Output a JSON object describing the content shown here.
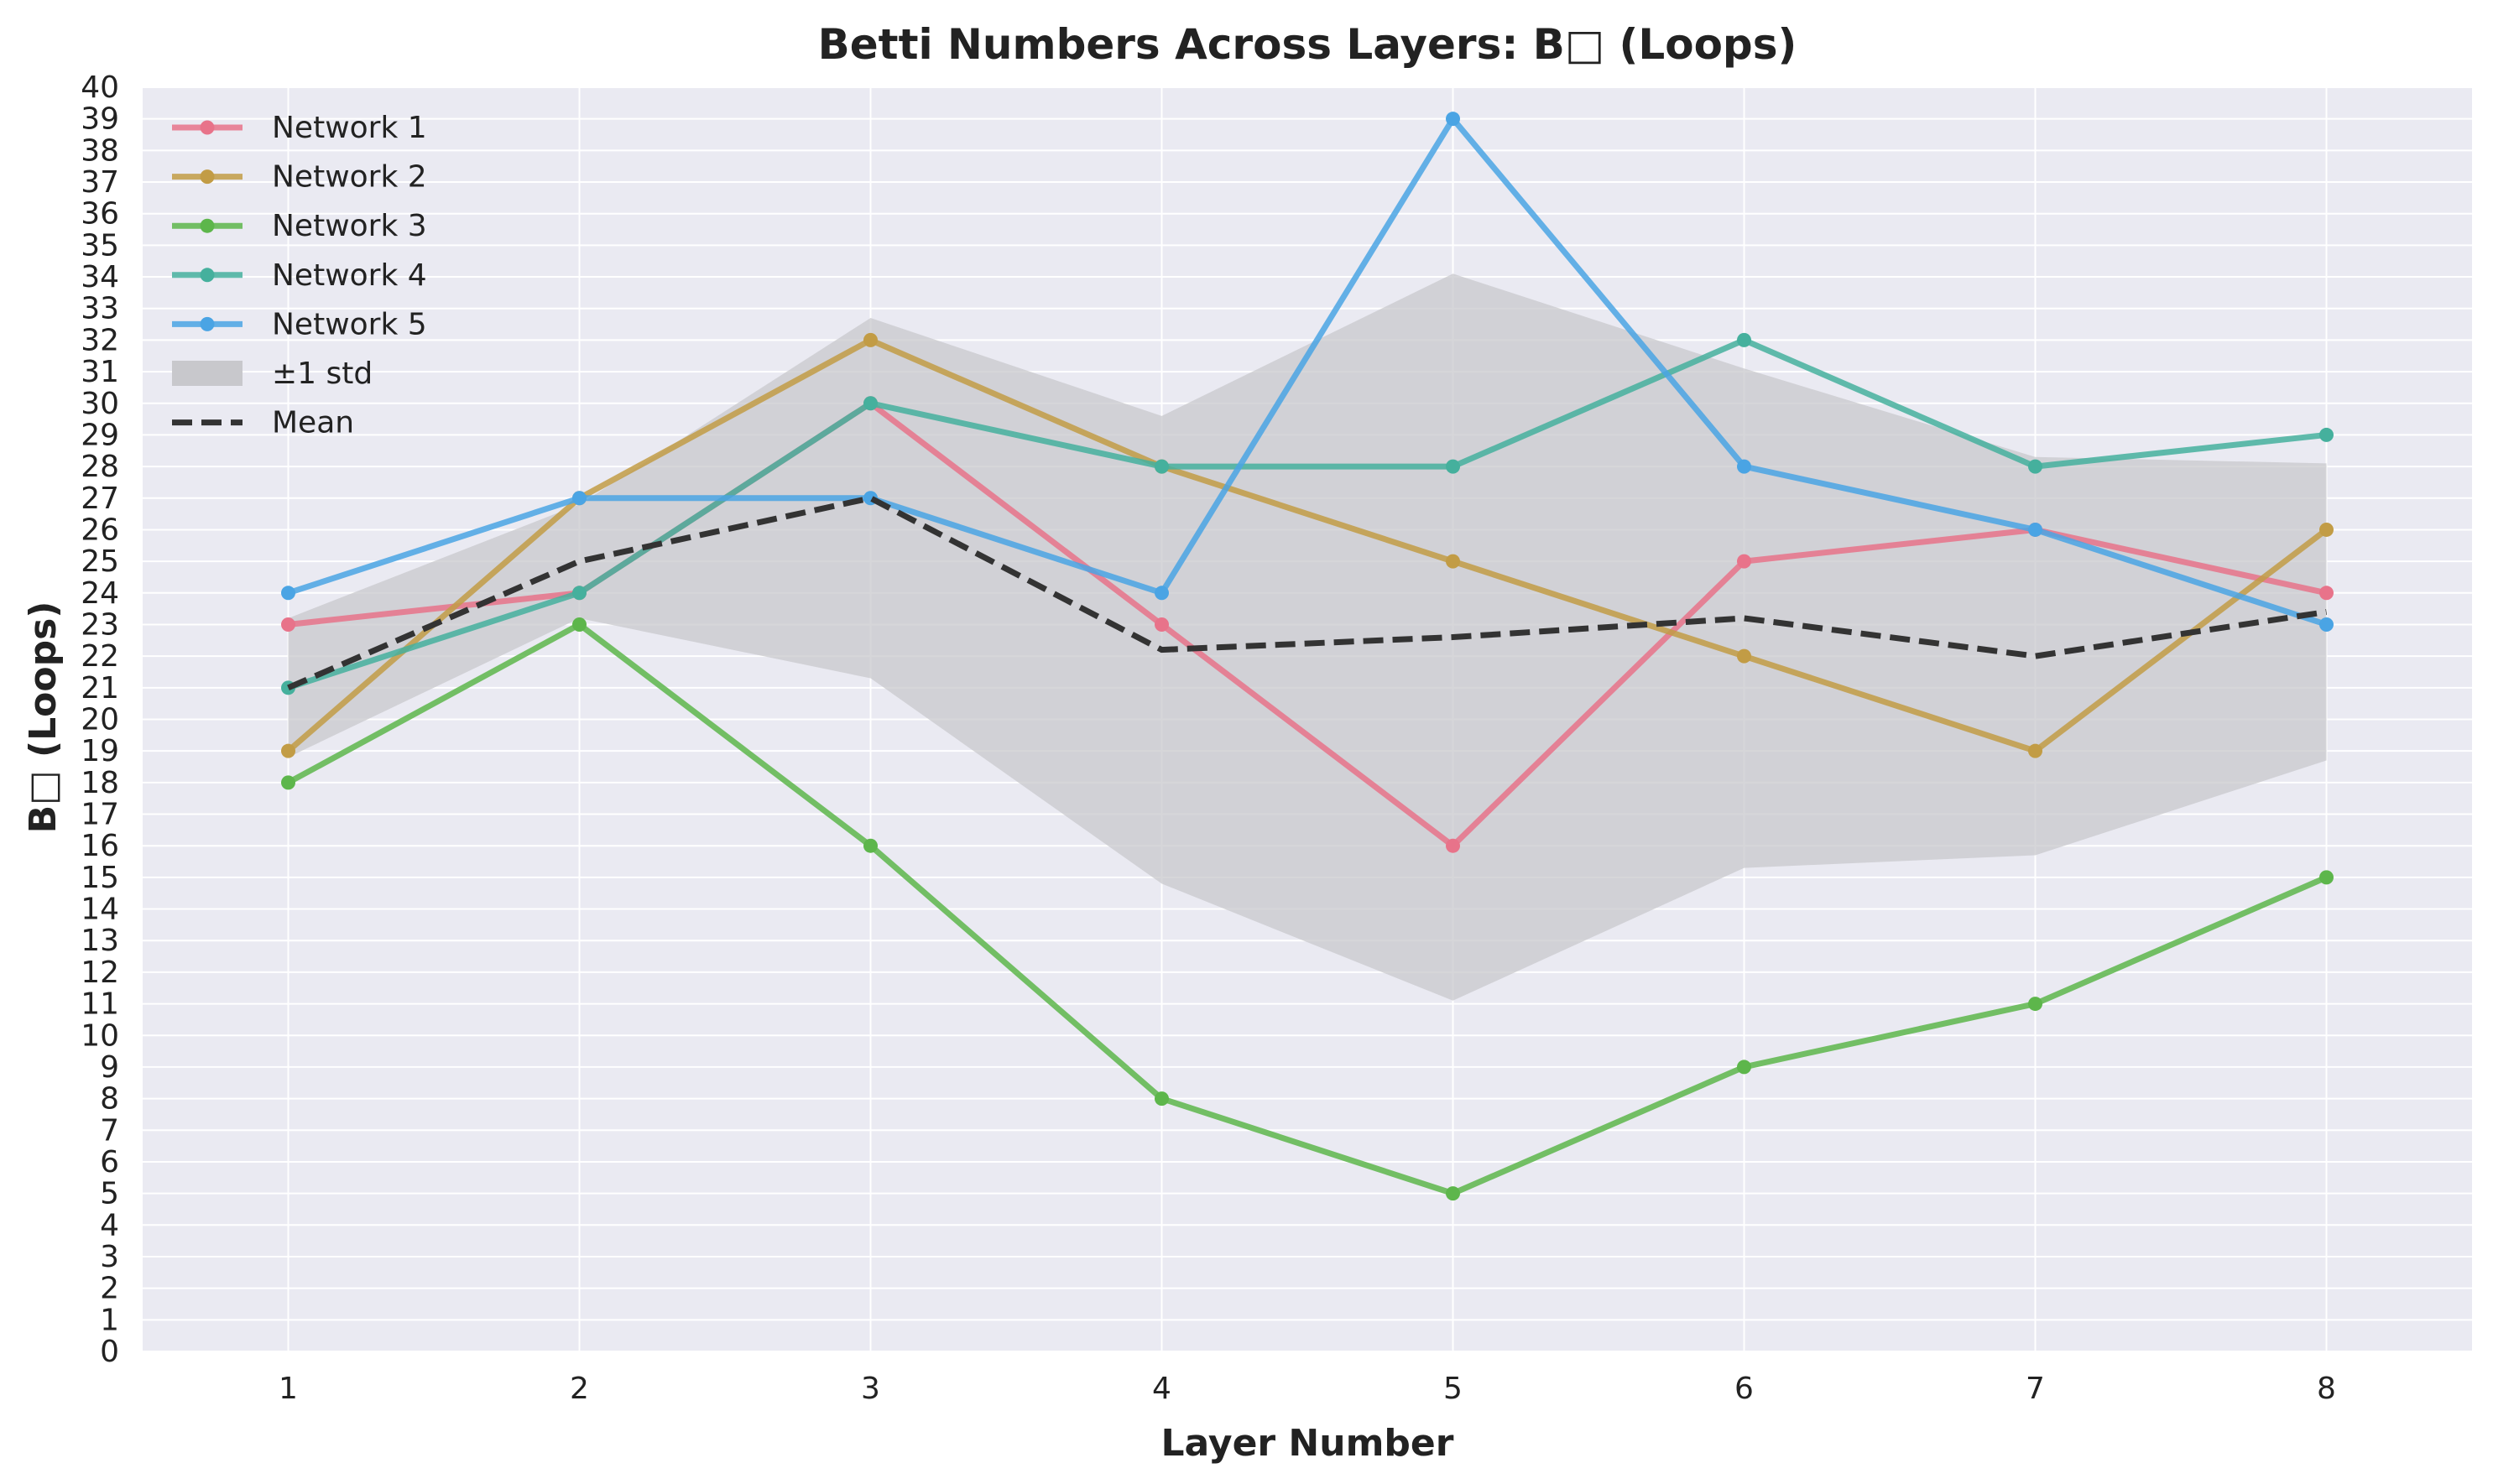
{
  "chart_data": {
    "type": "line",
    "title": "Betti Numbers Across Layers: B□ (Loops)",
    "xlabel": "Layer Number",
    "ylabel": "B□ (Loops)",
    "x": [
      1,
      2,
      3,
      4,
      5,
      6,
      7,
      8
    ],
    "xlim": [
      0.5,
      8.5
    ],
    "ylim": [
      0,
      40
    ],
    "yticks": [
      0,
      1,
      2,
      3,
      4,
      5,
      6,
      7,
      8,
      9,
      10,
      11,
      12,
      13,
      14,
      15,
      16,
      17,
      18,
      19,
      20,
      21,
      22,
      23,
      24,
      25,
      26,
      27,
      28,
      29,
      30,
      31,
      32,
      33,
      34,
      35,
      36,
      37,
      38,
      39,
      40
    ],
    "grid": true,
    "legend_position": "top-left",
    "series": [
      {
        "name": "Network 1",
        "color": "#e8738a",
        "values": [
          23,
          24,
          30,
          23,
          16,
          25,
          26,
          24
        ]
      },
      {
        "name": "Network 2",
        "color": "#c29c45",
        "values": [
          19,
          27,
          32,
          28,
          25,
          22,
          19,
          26
        ]
      },
      {
        "name": "Network 3",
        "color": "#5db64b",
        "values": [
          18,
          23,
          16,
          8,
          5,
          9,
          11,
          15
        ]
      },
      {
        "name": "Network 4",
        "color": "#45b09d",
        "values": [
          21,
          24,
          30,
          28,
          28,
          32,
          28,
          29
        ]
      },
      {
        "name": "Network 5",
        "color": "#4aa4e4",
        "values": [
          24,
          27,
          27,
          24,
          39,
          28,
          26,
          23
        ]
      }
    ],
    "mean": {
      "name": "Mean",
      "color": "#333333",
      "values": [
        21.0,
        25.0,
        27.0,
        22.2,
        22.6,
        23.2,
        22.0,
        23.4
      ]
    },
    "std_band": {
      "name": "±1 std",
      "color": "#c8c8cc",
      "lower": [
        18.8,
        23.2,
        21.3,
        14.8,
        11.1,
        15.3,
        15.7,
        18.7
      ],
      "upper": [
        23.2,
        26.8,
        32.7,
        29.6,
        34.1,
        31.1,
        28.3,
        28.1
      ]
    }
  }
}
